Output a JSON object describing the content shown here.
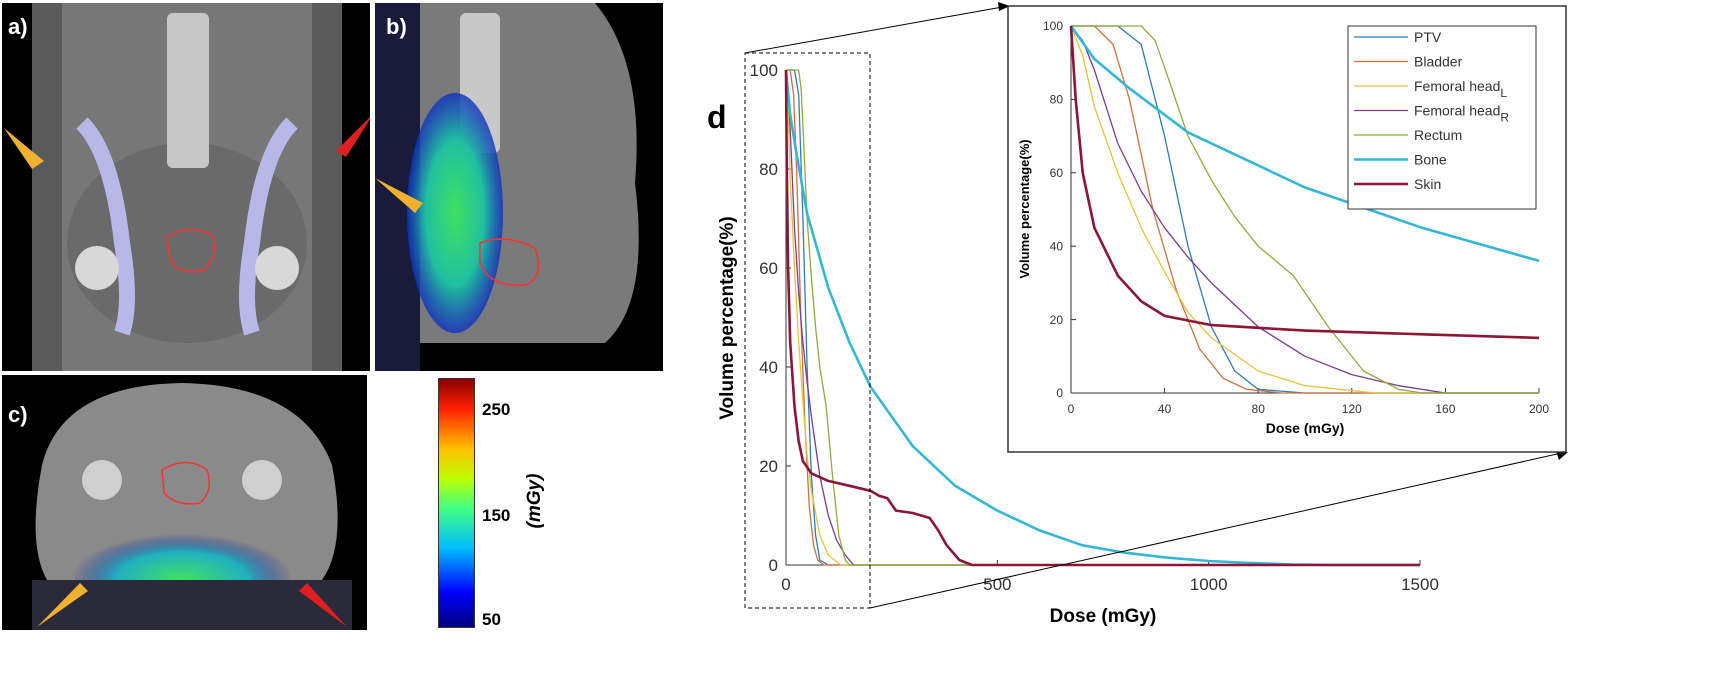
{
  "panels": {
    "a": {
      "label": "a)"
    },
    "b": {
      "label": "b)"
    },
    "c": {
      "label": "c)"
    },
    "d": {
      "label": "d"
    }
  },
  "colorbar": {
    "ticks": [
      "250",
      "150",
      "50"
    ],
    "unit": "(mGy)",
    "colors": [
      "#00007f",
      "#0000ff",
      "#00bfff",
      "#40ff80",
      "#c0ff00",
      "#ffbf00",
      "#ff2000",
      "#8b0000"
    ]
  },
  "chart_data": [
    {
      "type": "line",
      "name": "main",
      "xlabel": "Dose (mGy)",
      "ylabel": "Volume percentage(%)",
      "xlim": [
        0,
        1500
      ],
      "ylim": [
        0,
        100
      ],
      "xticks": [
        "0",
        "500",
        "1000",
        "1500"
      ],
      "yticks": [
        "0",
        "20",
        "40",
        "60",
        "80",
        "100"
      ],
      "series": [
        {
          "name": "PTV",
          "color": "#2e7ab8",
          "width": 1.3,
          "points": [
            [
              0,
              100
            ],
            [
              20,
              100
            ],
            [
              30,
              95
            ],
            [
              40,
              70
            ],
            [
              50,
              40
            ],
            [
              60,
              18
            ],
            [
              70,
              6
            ],
            [
              80,
              1
            ],
            [
              100,
              0
            ],
            [
              1500,
              0
            ]
          ]
        },
        {
          "name": "Bladder",
          "color": "#d0703a",
          "width": 1.3,
          "points": [
            [
              0,
              100
            ],
            [
              10,
              100
            ],
            [
              18,
              95
            ],
            [
              25,
              80
            ],
            [
              35,
              50
            ],
            [
              45,
              28
            ],
            [
              55,
              12
            ],
            [
              65,
              4
            ],
            [
              75,
              1
            ],
            [
              90,
              0
            ],
            [
              1500,
              0
            ]
          ]
        },
        {
          "name": "Femoral head_L",
          "color": "#e8c23c",
          "width": 1.3,
          "points": [
            [
              0,
              100
            ],
            [
              5,
              92
            ],
            [
              10,
              78
            ],
            [
              20,
              60
            ],
            [
              30,
              45
            ],
            [
              40,
              33
            ],
            [
              50,
              22
            ],
            [
              60,
              15
            ],
            [
              80,
              6
            ],
            [
              100,
              2
            ],
            [
              130,
              0
            ],
            [
              1500,
              0
            ]
          ]
        },
        {
          "name": "Femoral head_R",
          "color": "#7d3c8f",
          "width": 1.3,
          "points": [
            [
              0,
              100
            ],
            [
              5,
              96
            ],
            [
              10,
              88
            ],
            [
              20,
              68
            ],
            [
              30,
              55
            ],
            [
              40,
              45
            ],
            [
              50,
              37
            ],
            [
              60,
              30
            ],
            [
              80,
              18
            ],
            [
              100,
              10
            ],
            [
              120,
              5
            ],
            [
              140,
              2
            ],
            [
              160,
              0
            ],
            [
              1500,
              0
            ]
          ]
        },
        {
          "name": "Rectum",
          "color": "#8cad3e",
          "width": 1.3,
          "points": [
            [
              0,
              100
            ],
            [
              30,
              100
            ],
            [
              36,
              96
            ],
            [
              42,
              85
            ],
            [
              50,
              70
            ],
            [
              60,
              58
            ],
            [
              70,
              48
            ],
            [
              80,
              40
            ],
            [
              95,
              32
            ],
            [
              110,
              18
            ],
            [
              125,
              6
            ],
            [
              140,
              1
            ],
            [
              150,
              0
            ],
            [
              1500,
              0
            ]
          ]
        },
        {
          "name": "Bone",
          "color": "#34b6d6",
          "width": 2.6,
          "points": [
            [
              0,
              100
            ],
            [
              10,
              91
            ],
            [
              25,
              83
            ],
            [
              50,
              71
            ],
            [
              100,
              56
            ],
            [
              150,
              45
            ],
            [
              200,
              36
            ],
            [
              300,
              24
            ],
            [
              400,
              16
            ],
            [
              500,
              11
            ],
            [
              600,
              7
            ],
            [
              700,
              4
            ],
            [
              800,
              2.5
            ],
            [
              900,
              1.5
            ],
            [
              1000,
              0.8
            ],
            [
              1100,
              0.4
            ],
            [
              1200,
              0.1
            ],
            [
              1300,
              0
            ],
            [
              1500,
              0
            ]
          ]
        },
        {
          "name": "Skin",
          "color": "#8c1538",
          "width": 2.6,
          "points": [
            [
              0,
              100
            ],
            [
              2,
              80
            ],
            [
              5,
              60
            ],
            [
              10,
              45
            ],
            [
              20,
              32
            ],
            [
              30,
              25
            ],
            [
              40,
              21
            ],
            [
              60,
              18.5
            ],
            [
              100,
              17
            ],
            [
              150,
              16
            ],
            [
              200,
              15
            ],
            [
              220,
              14
            ],
            [
              240,
              13.5
            ],
            [
              260,
              11
            ],
            [
              300,
              10.5
            ],
            [
              340,
              9.5
            ],
            [
              360,
              7
            ],
            [
              380,
              4
            ],
            [
              410,
              1
            ],
            [
              440,
              0
            ],
            [
              1500,
              0
            ]
          ]
        }
      ]
    },
    {
      "type": "line",
      "name": "inset",
      "xlabel": "Dose (mGy)",
      "ylabel": "Volume percentage(%)",
      "xlim": [
        0,
        200
      ],
      "ylim": [
        0,
        100
      ],
      "xticks": [
        "0",
        "40",
        "80",
        "120",
        "160",
        "200"
      ],
      "yticks": [
        "0",
        "20",
        "40",
        "60",
        "80",
        "100"
      ],
      "legend": {
        "placement": "top-right",
        "entries": [
          {
            "text": "PTV",
            "sub": ""
          },
          {
            "text": "Bladder",
            "sub": ""
          },
          {
            "text": "Femoral head",
            "sub": "L"
          },
          {
            "text": "Femoral head",
            "sub": "R"
          },
          {
            "text": "Rectum",
            "sub": ""
          },
          {
            "text": "Bone",
            "sub": ""
          },
          {
            "text": "Skin",
            "sub": ""
          }
        ]
      }
    }
  ]
}
